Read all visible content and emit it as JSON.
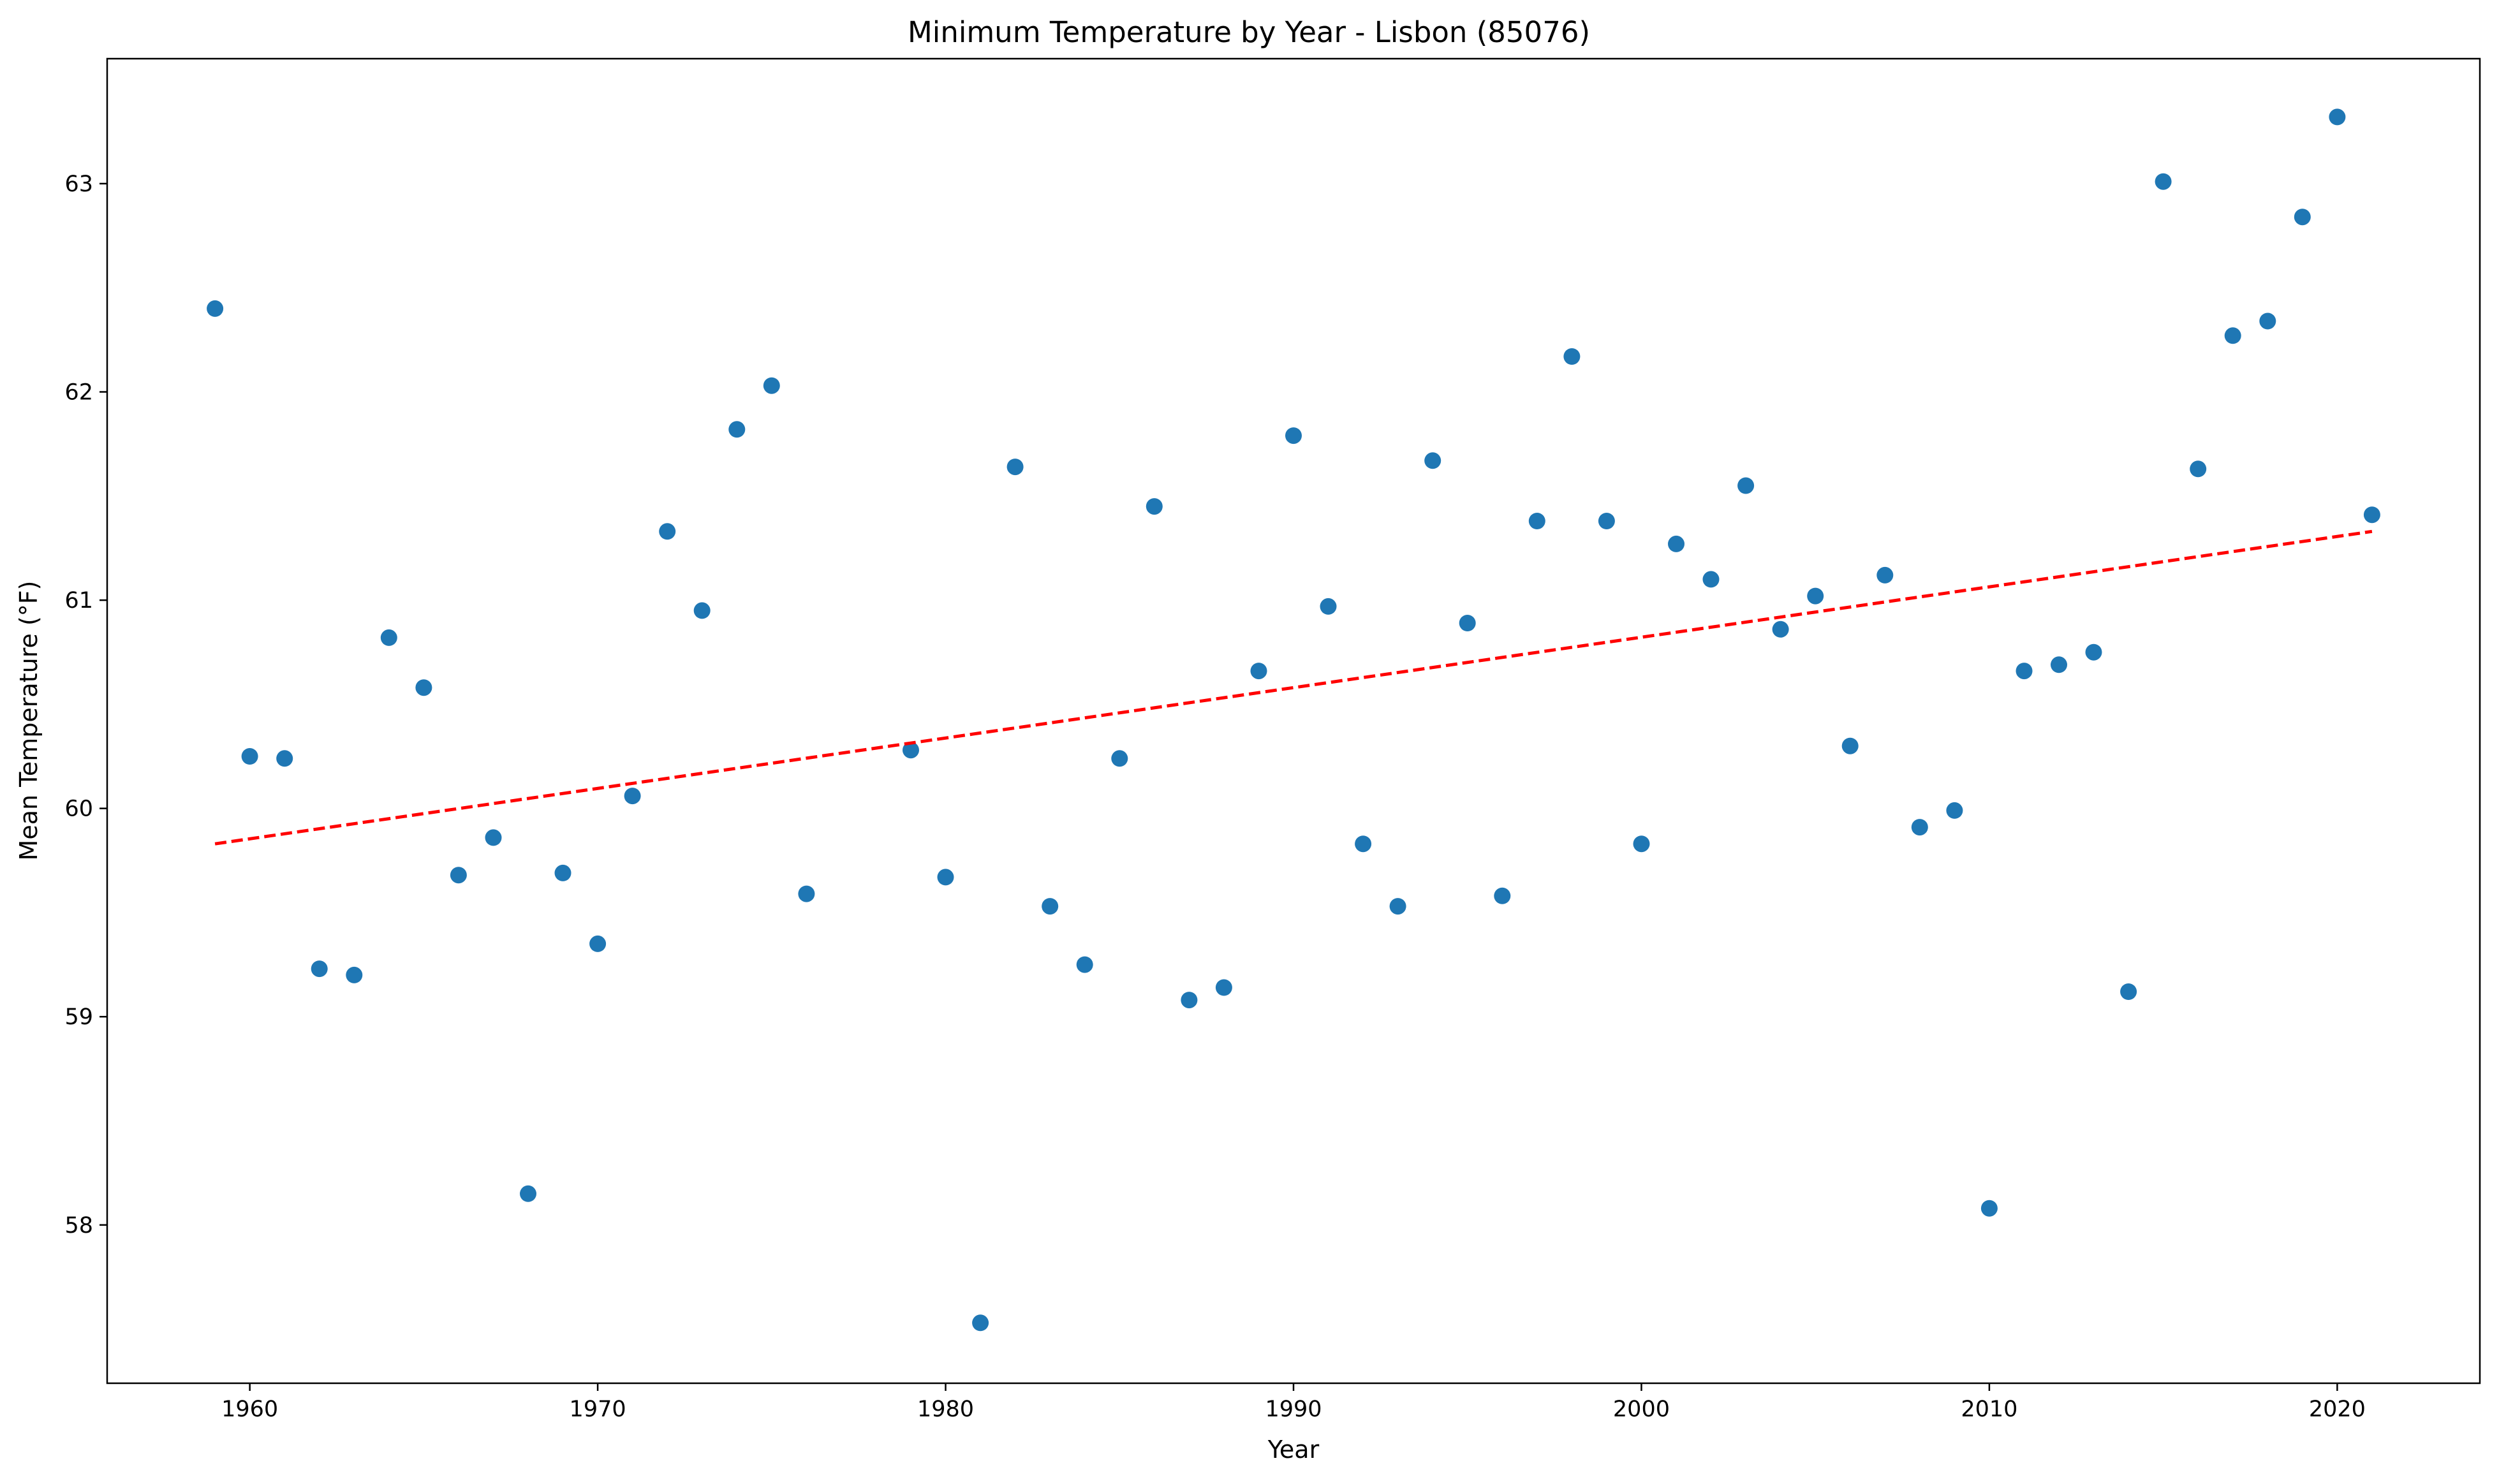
{
  "chart_data": {
    "type": "scatter",
    "title": "Minimum Temperature by Year - Lisbon (85076)",
    "xlabel": "Year",
    "ylabel": "Mean Temperature (°F)",
    "xlim": [
      1955.9,
      2024.1
    ],
    "ylim": [
      57.24,
      63.6
    ],
    "xticks": [
      1960,
      1970,
      1980,
      1990,
      2000,
      2010,
      2020
    ],
    "yticks": [
      58,
      59,
      60,
      61,
      62,
      63
    ],
    "grid": false,
    "legend": false,
    "colors": {
      "points": "#1f77b4",
      "trend": "#ff0000"
    },
    "series": [
      {
        "marker": "circle",
        "x": [
          1959,
          1960,
          1961,
          1962,
          1963,
          1964,
          1965,
          1966,
          1967,
          1968,
          1969,
          1970,
          1971,
          1972,
          1973,
          1974,
          1975,
          1976,
          1979,
          1980,
          1981,
          1982,
          1983,
          1984,
          1985,
          1986,
          1987,
          1988,
          1989,
          1990,
          1991,
          1992,
          1993,
          1994,
          1995,
          1996,
          1997,
          1998,
          1999,
          2000,
          2001,
          2002,
          2003,
          2004,
          2005,
          2006,
          2007,
          2008,
          2009,
          2010,
          2011,
          2012,
          2013,
          2014,
          2015,
          2016,
          2017,
          2018,
          2019,
          2020,
          2021
        ],
        "y": [
          62.4,
          60.25,
          60.24,
          59.23,
          59.2,
          60.82,
          60.58,
          59.68,
          59.86,
          58.15,
          59.69,
          59.35,
          60.06,
          61.33,
          60.95,
          61.82,
          62.03,
          59.59,
          60.28,
          59.67,
          57.53,
          61.64,
          59.53,
          59.25,
          60.24,
          61.45,
          59.08,
          59.14,
          60.66,
          61.79,
          60.97,
          59.83,
          59.53,
          61.67,
          60.89,
          59.58,
          61.38,
          62.17,
          61.38,
          59.83,
          61.27,
          61.1,
          61.55,
          60.86,
          61.02,
          60.3,
          61.12,
          59.91,
          59.99,
          58.08,
          60.66,
          60.69,
          60.75,
          59.12,
          63.01,
          61.63,
          62.27,
          62.34,
          62.84,
          63.32,
          61.41
        ]
      },
      {
        "style": "dashed",
        "x": [
          1959,
          2021
        ],
        "y": [
          59.83,
          61.33
        ]
      }
    ]
  }
}
